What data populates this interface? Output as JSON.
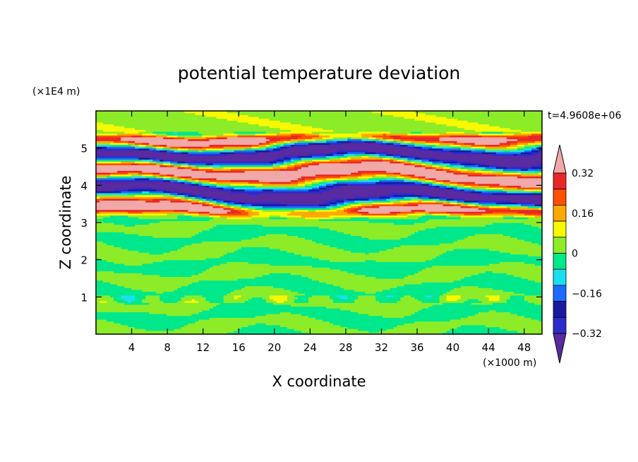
{
  "chart_data": {
    "type": "heatmap",
    "title": "potential temperature deviation",
    "time_label": "t=4.9608e+06",
    "xlabel": "X coordinate",
    "ylabel": "Z coordinate",
    "x_unit": "(×1000 m)",
    "y_unit": "(×1E4 m)",
    "xlim": [
      0,
      50
    ],
    "ylim": [
      0,
      6
    ],
    "x_ticks": [
      "4",
      "8",
      "12",
      "16",
      "20",
      "24",
      "28",
      "32",
      "36",
      "40",
      "44",
      "48"
    ],
    "y_ticks": [
      "1",
      "2",
      "3",
      "4",
      "5"
    ],
    "colorbar": {
      "tick_labels": [
        "0.32",
        "0.16",
        "0",
        "−0.16",
        "−0.32"
      ],
      "tick_values": [
        0.32,
        0.16,
        0,
        -0.16,
        -0.32
      ],
      "levels": [
        -0.4,
        -0.32,
        -0.24,
        -0.16,
        -0.08,
        0,
        0.08,
        0.16,
        0.24,
        0.32,
        0.4
      ],
      "colors": [
        "#5a2aa0",
        "#2c2ccc",
        "#1a1aa0",
        "#1c6aff",
        "#18e0f0",
        "#00e88c",
        "#8cec28",
        "#f8f800",
        "#ffa800",
        "#ff5000",
        "#e82828",
        "#f0a8a8"
      ],
      "extend": "both"
    },
    "field_description_bands": [
      {
        "z_range": [
          0,
          3.1
        ],
        "pattern": "mostly green / light green, near 0"
      },
      {
        "z_range": [
          3.1,
          5.5
        ],
        "pattern": "strong alternating layers of red/pink and blue/purple"
      },
      {
        "z_range": [
          5.5,
          6
        ],
        "pattern": "green / light green"
      }
    ]
  }
}
